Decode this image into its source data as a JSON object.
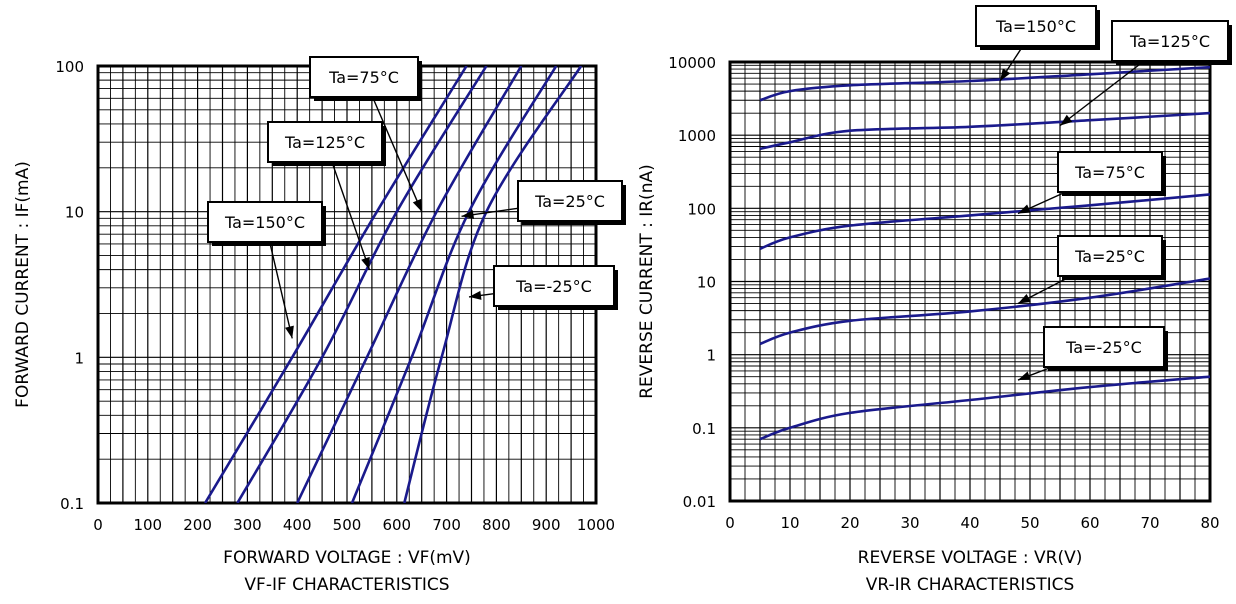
{
  "chart_data": [
    {
      "type": "line",
      "title": "VF-IF CHARACTERISTICS",
      "xlabel": "FORWARD VOLTAGE : VF(mV)",
      "ylabel": "FORWARD CURRENT : IF(mA)",
      "x_scale": "linear",
      "y_scale": "log",
      "xlim": [
        0,
        1000
      ],
      "ylim": [
        0.1,
        100
      ],
      "x_ticks": [
        "0",
        "100",
        "200",
        "300",
        "400",
        "500",
        "600",
        "700",
        "800",
        "900",
        "1000"
      ],
      "y_ticks": [
        "0.1",
        "1",
        "10",
        "100"
      ],
      "grid": true,
      "series": [
        {
          "name": "Ta=150°C",
          "points": [
            [
              215,
              0.1
            ],
            [
              390,
              1
            ],
            [
              560,
              10
            ],
            [
              740,
              100
            ]
          ]
        },
        {
          "name": "Ta=125°C",
          "points": [
            [
              280,
              0.1
            ],
            [
              450,
              1
            ],
            [
              600,
              10
            ],
            [
              780,
              100
            ]
          ]
        },
        {
          "name": "Ta=75°C",
          "points": [
            [
              400,
              0.1
            ],
            [
              540,
              1
            ],
            [
              680,
              10
            ],
            [
              850,
              100
            ]
          ]
        },
        {
          "name": "Ta=25°C",
          "points": [
            [
              510,
              0.1
            ],
            [
              630,
              1
            ],
            [
              745,
              10
            ],
            [
              920,
              100
            ]
          ]
        },
        {
          "name": "Ta=-25°C",
          "points": [
            [
              615,
              0.1
            ],
            [
              690,
              1
            ],
            [
              780,
              10
            ],
            [
              970,
              100
            ]
          ]
        }
      ],
      "annotations": [
        {
          "text": "Ta=75°C",
          "target": [
            650,
            10
          ]
        },
        {
          "text": "Ta=125°C",
          "target": [
            545,
            4
          ]
        },
        {
          "text": "Ta=150°C",
          "target": [
            390,
            1.35
          ]
        },
        {
          "text": "Ta=25°C",
          "target": [
            730,
            9.3
          ]
        },
        {
          "text": "Ta=-25°C",
          "target": [
            745,
            2.6
          ]
        }
      ]
    },
    {
      "type": "line",
      "title": "VR-IR CHARACTERISTICS",
      "xlabel": "REVERSE VOLTAGE : VR(V)",
      "ylabel": "REVERSE CURRENT : IR(nA)",
      "x_scale": "linear",
      "y_scale": "log",
      "xlim": [
        0,
        80
      ],
      "ylim": [
        0.01,
        10000
      ],
      "x_ticks": [
        "0",
        "10",
        "20",
        "30",
        "40",
        "50",
        "60",
        "70",
        "80"
      ],
      "y_ticks": [
        "0.01",
        "0.1",
        "1",
        "10",
        "100",
        "1000",
        "10000"
      ],
      "grid": true,
      "series": [
        {
          "name": "Ta=150°C",
          "points": [
            [
              5,
              3000
            ],
            [
              10,
              4000
            ],
            [
              20,
              4800
            ],
            [
              40,
              5500
            ],
            [
              60,
              6800
            ],
            [
              80,
              8500
            ]
          ]
        },
        {
          "name": "Ta=125°C",
          "points": [
            [
              5,
              650
            ],
            [
              10,
              800
            ],
            [
              20,
              1150
            ],
            [
              40,
              1300
            ],
            [
              60,
              1600
            ],
            [
              80,
              2000
            ]
          ]
        },
        {
          "name": "Ta=75°C",
          "points": [
            [
              5,
              28
            ],
            [
              10,
              40
            ],
            [
              20,
              58
            ],
            [
              40,
              80
            ],
            [
              60,
              110
            ],
            [
              80,
              155
            ]
          ]
        },
        {
          "name": "Ta=25°C",
          "points": [
            [
              5,
              1.4
            ],
            [
              10,
              2.0
            ],
            [
              20,
              2.9
            ],
            [
              40,
              3.9
            ],
            [
              60,
              6.0
            ],
            [
              80,
              11
            ]
          ]
        },
        {
          "name": "Ta=-25°C",
          "points": [
            [
              5,
              0.07
            ],
            [
              10,
              0.1
            ],
            [
              20,
              0.16
            ],
            [
              40,
              0.24
            ],
            [
              60,
              0.36
            ],
            [
              80,
              0.5
            ]
          ]
        }
      ],
      "annotations": [
        {
          "text": "Ta=150°C",
          "target": [
            45,
            5500
          ]
        },
        {
          "text": "Ta=125°C",
          "target": [
            55,
            1350
          ]
        },
        {
          "text": "Ta=75°C",
          "target": [
            48,
            85
          ]
        },
        {
          "text": "Ta=25°C",
          "target": [
            48,
            5.0
          ]
        },
        {
          "text": "Ta=-25°C",
          "target": [
            48,
            0.45
          ]
        }
      ]
    }
  ]
}
